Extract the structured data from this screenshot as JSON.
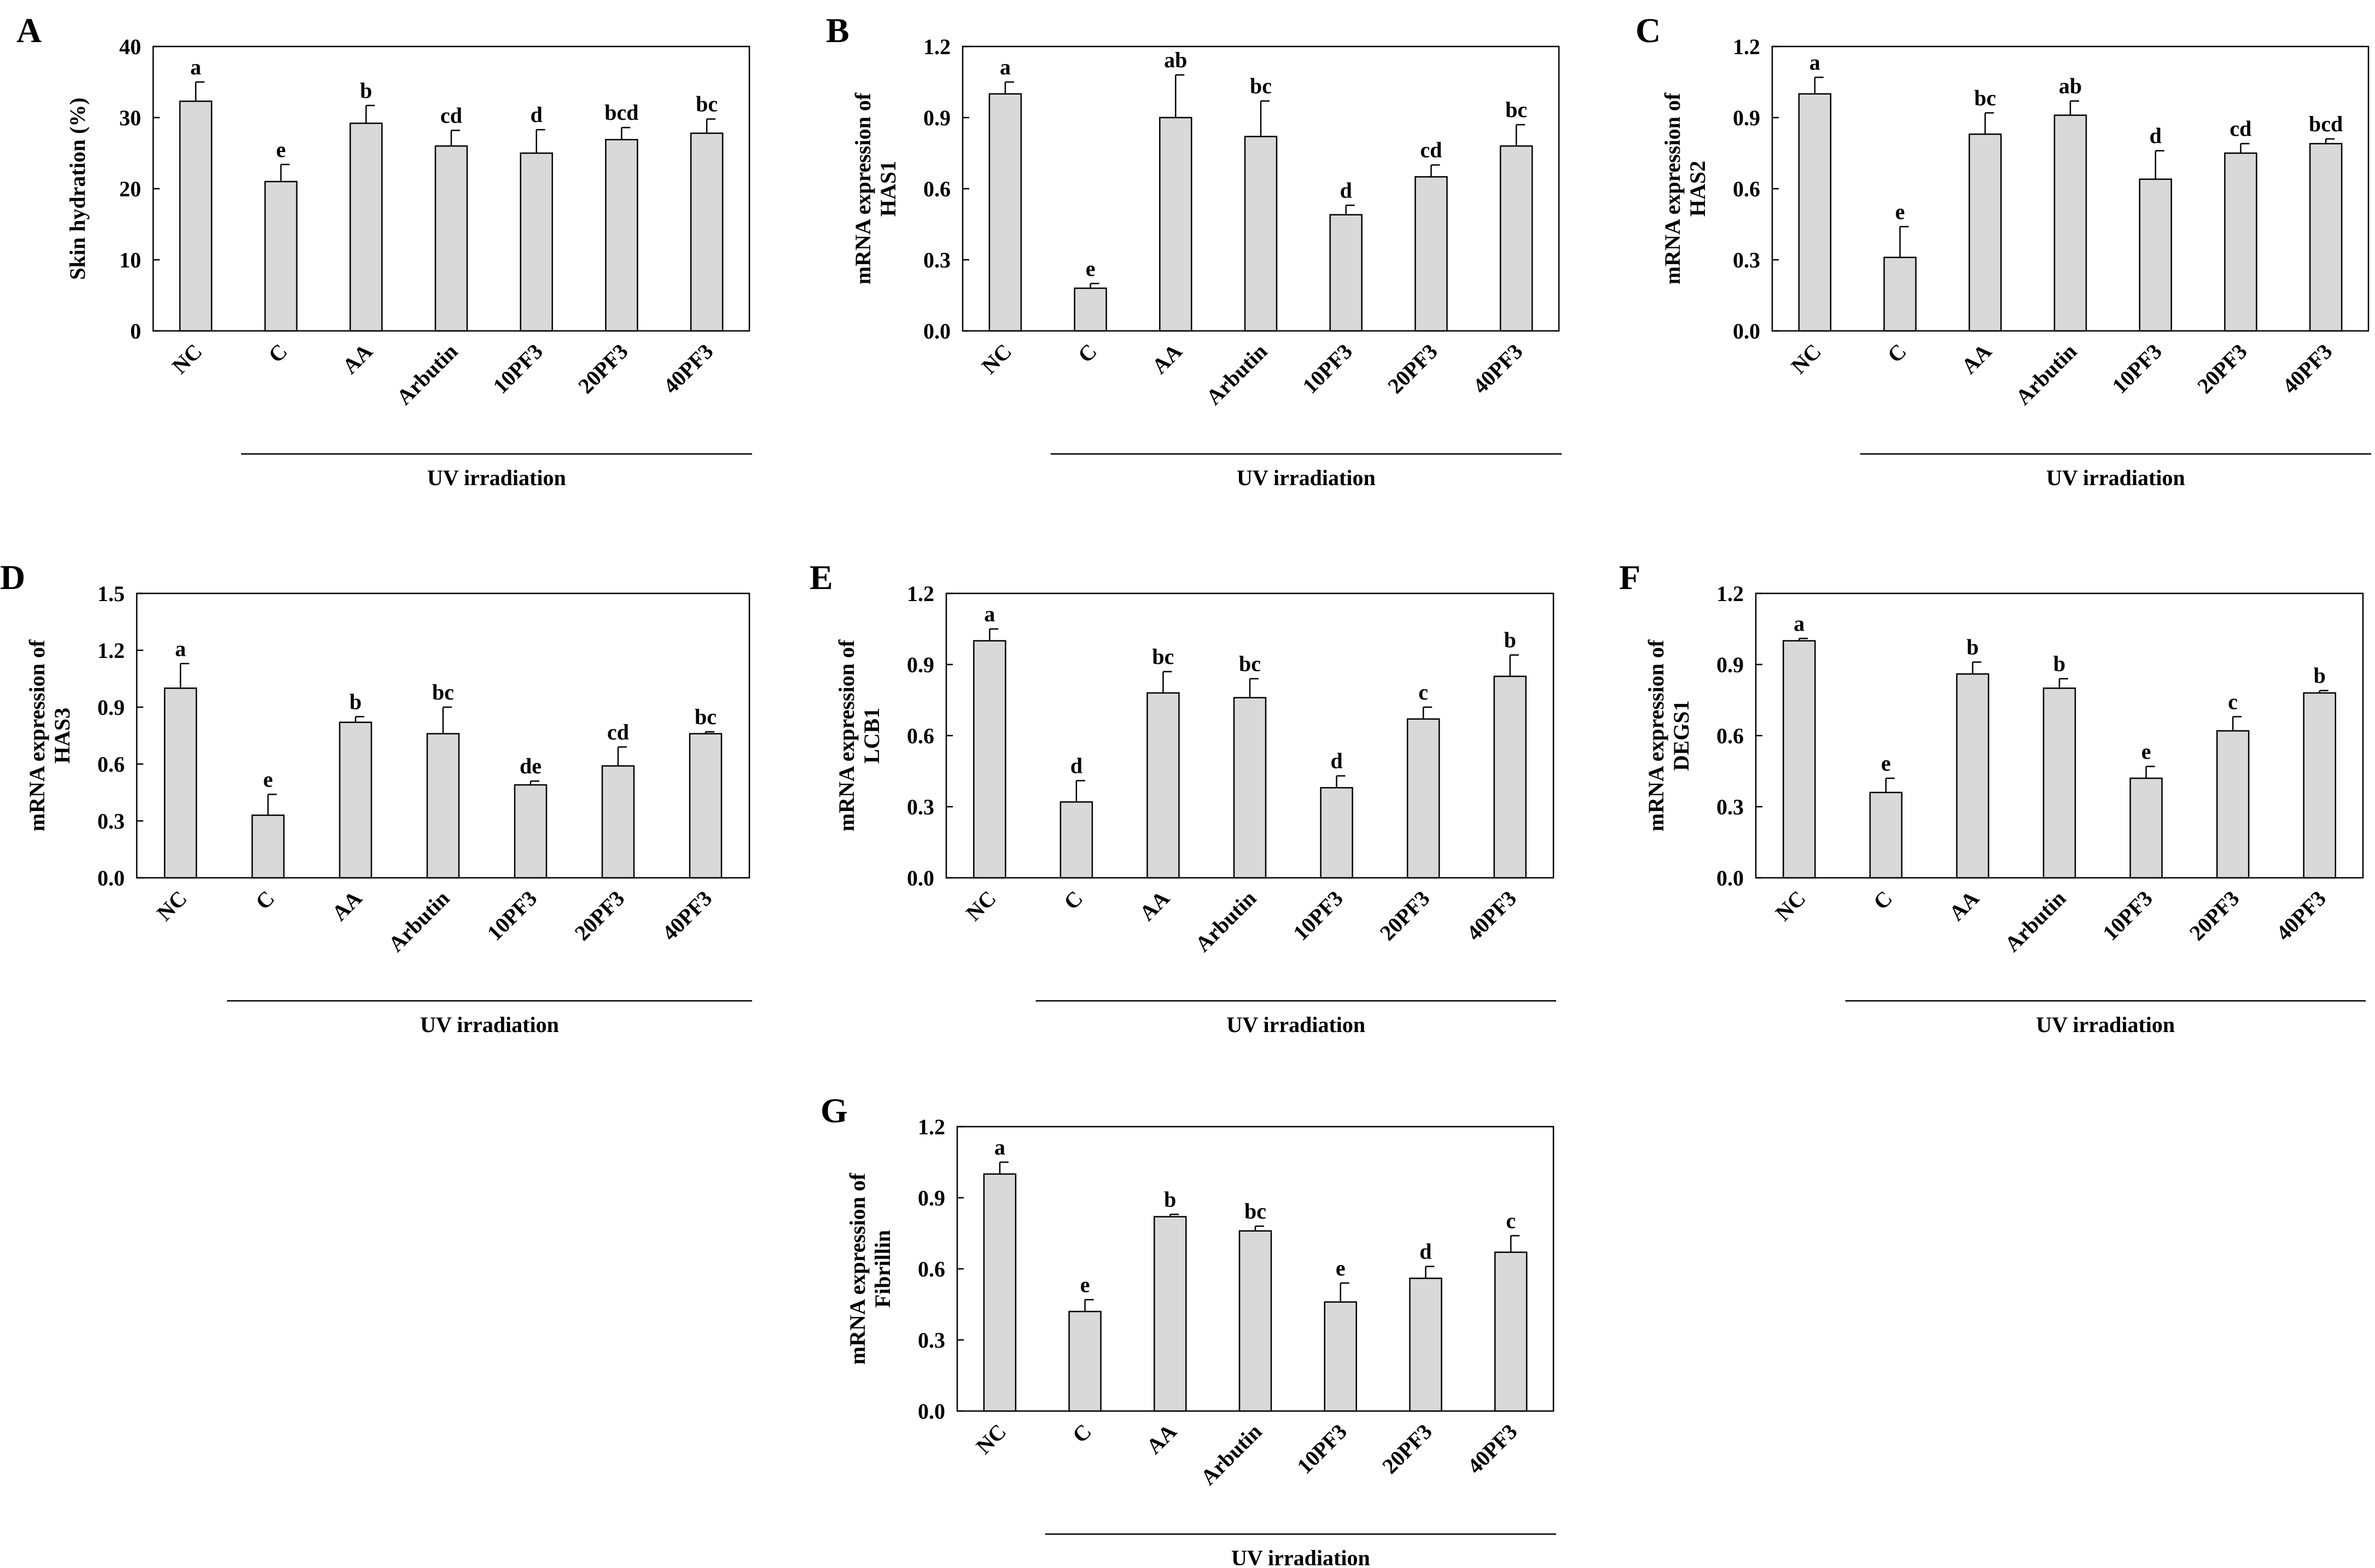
{
  "chart_data": [
    {
      "type": "bar",
      "panel": "A",
      "ylabel": "Skin hydration (%)",
      "xlabel": "",
      "group_label": "UV irradiation",
      "categories": [
        "NC",
        "C",
        "AA",
        "Arbutin",
        "10PF3",
        "20PF3",
        "40PF3"
      ],
      "values": [
        32.3,
        21.0,
        29.2,
        26.0,
        25.0,
        26.9,
        27.8
      ],
      "errors": [
        2.7,
        2.4,
        2.5,
        2.2,
        3.3,
        1.7,
        2.0
      ],
      "letters": [
        "a",
        "e",
        "b",
        "cd",
        "d",
        "bcd",
        "bc"
      ],
      "ylim": [
        0,
        40
      ],
      "yticks": [
        0,
        10,
        20,
        30,
        40
      ],
      "yticklabels": [
        "0",
        "10",
        "20",
        "30",
        "40"
      ]
    },
    {
      "type": "bar",
      "panel": "B",
      "ylabel": "mRNA expression of HAS1",
      "xlabel": "",
      "group_label": "UV irradiation",
      "categories": [
        "NC",
        "C",
        "AA",
        "Arbutin",
        "10PF3",
        "20PF3",
        "40PF3"
      ],
      "values": [
        1.0,
        0.18,
        0.9,
        0.82,
        0.49,
        0.65,
        0.78
      ],
      "errors": [
        0.05,
        0.02,
        0.18,
        0.15,
        0.04,
        0.05,
        0.09
      ],
      "letters": [
        "a",
        "e",
        "ab",
        "bc",
        "d",
        "cd",
        "bc"
      ],
      "ylim": [
        0,
        1.2
      ],
      "yticks": [
        0,
        0.3,
        0.6,
        0.9,
        1.2
      ],
      "yticklabels": [
        "0.0",
        "0.3",
        "0.6",
        "0.9",
        "1.2"
      ]
    },
    {
      "type": "bar",
      "panel": "C",
      "ylabel": "mRNA expression of HAS2",
      "xlabel": "",
      "group_label": "UV irradiation",
      "categories": [
        "NC",
        "C",
        "AA",
        "Arbutin",
        "10PF3",
        "20PF3",
        "40PF3"
      ],
      "values": [
        1.0,
        0.31,
        0.83,
        0.91,
        0.64,
        0.75,
        0.79
      ],
      "errors": [
        0.07,
        0.13,
        0.09,
        0.06,
        0.12,
        0.04,
        0.02
      ],
      "letters": [
        "a",
        "e",
        "bc",
        "ab",
        "d",
        "cd",
        "bcd"
      ],
      "ylim": [
        0,
        1.2
      ],
      "yticks": [
        0,
        0.3,
        0.6,
        0.9,
        1.2
      ],
      "yticklabels": [
        "0.0",
        "0.3",
        "0.6",
        "0.9",
        "1.2"
      ]
    },
    {
      "type": "bar",
      "panel": "D",
      "ylabel": "mRNA expression of HAS3",
      "xlabel": "",
      "group_label": "UV irradiation",
      "categories": [
        "NC",
        "C",
        "AA",
        "Arbutin",
        "10PF3",
        "20PF3",
        "40PF3"
      ],
      "values": [
        1.0,
        0.33,
        0.82,
        0.76,
        0.49,
        0.59,
        0.76
      ],
      "errors": [
        0.13,
        0.11,
        0.03,
        0.14,
        0.02,
        0.1,
        0.01
      ],
      "letters": [
        "a",
        "e",
        "b",
        "bc",
        "de",
        "cd",
        "bc"
      ],
      "ylim": [
        0,
        1.5
      ],
      "yticks": [
        0,
        0.3,
        0.6,
        0.9,
        1.2,
        1.5
      ],
      "yticklabels": [
        "0.0",
        "0.3",
        "0.6",
        "0.9",
        "1.2",
        "1.5"
      ]
    },
    {
      "type": "bar",
      "panel": "E",
      "ylabel": "mRNA expression of LCB1",
      "xlabel": "",
      "group_label": "UV irradiation",
      "categories": [
        "NC",
        "C",
        "AA",
        "Arbutin",
        "10PF3",
        "20PF3",
        "40PF3"
      ],
      "values": [
        1.0,
        0.32,
        0.78,
        0.76,
        0.38,
        0.67,
        0.85
      ],
      "errors": [
        0.05,
        0.09,
        0.09,
        0.08,
        0.05,
        0.05,
        0.09
      ],
      "letters": [
        "a",
        "d",
        "bc",
        "bc",
        "d",
        "c",
        "b"
      ],
      "ylim": [
        0,
        1.2
      ],
      "yticks": [
        0,
        0.3,
        0.6,
        0.9,
        1.2
      ],
      "yticklabels": [
        "0.0",
        "0.3",
        "0.6",
        "0.9",
        "1.2"
      ]
    },
    {
      "type": "bar",
      "panel": "F",
      "ylabel": "mRNA expression of DEGS1",
      "xlabel": "",
      "group_label": "UV irradiation",
      "categories": [
        "NC",
        "C",
        "AA",
        "Arbutin",
        "10PF3",
        "20PF3",
        "40PF3"
      ],
      "values": [
        1.0,
        0.36,
        0.86,
        0.8,
        0.42,
        0.62,
        0.78
      ],
      "errors": [
        0.01,
        0.06,
        0.05,
        0.04,
        0.05,
        0.06,
        0.01
      ],
      "letters": [
        "a",
        "e",
        "b",
        "b",
        "e",
        "c",
        "b"
      ],
      "ylim": [
        0,
        1.2
      ],
      "yticks": [
        0,
        0.3,
        0.6,
        0.9,
        1.2
      ],
      "yticklabels": [
        "0.0",
        "0.3",
        "0.6",
        "0.9",
        "1.2"
      ]
    },
    {
      "type": "bar",
      "panel": "G",
      "ylabel": "mRNA expression of Fibrillin",
      "xlabel": "",
      "group_label": "UV irradiation",
      "categories": [
        "NC",
        "C",
        "AA",
        "Arbutin",
        "10PF3",
        "20PF3",
        "40PF3"
      ],
      "values": [
        1.0,
        0.42,
        0.82,
        0.76,
        0.46,
        0.56,
        0.67
      ],
      "errors": [
        0.05,
        0.05,
        0.01,
        0.02,
        0.08,
        0.05,
        0.07
      ],
      "letters": [
        "a",
        "e",
        "b",
        "bc",
        "e",
        "d",
        "c"
      ],
      "ylim": [
        0,
        1.2
      ],
      "yticks": [
        0,
        0.3,
        0.6,
        0.9,
        1.2
      ],
      "yticklabels": [
        "0.0",
        "0.3",
        "0.6",
        "0.9",
        "1.2"
      ]
    }
  ],
  "style": {
    "bar_fill": "#d9d9d9",
    "line_color": "#000000",
    "background": "#ffffff"
  }
}
